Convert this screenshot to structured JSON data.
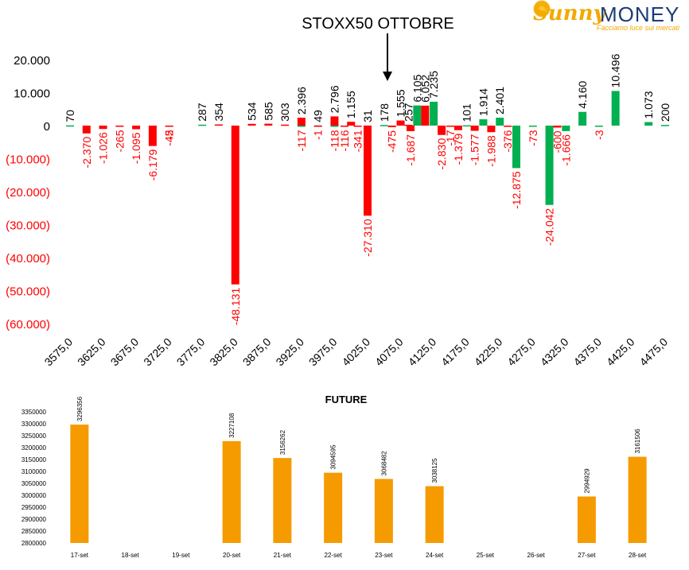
{
  "logo": {
    "brand_left": "Sunny",
    "brand_right": "MONEY",
    "tagline": "Facciamo luce sui mercati"
  },
  "chart_data": [
    {
      "type": "bar",
      "title": "STOXX50 OTTOBRE",
      "annotation": "arrow pointing down at strike 4075",
      "strikes": [
        3575,
        3600,
        3625,
        3650,
        3675,
        3700,
        3725,
        3750,
        3775,
        3800,
        3825,
        3850,
        3875,
        3900,
        3925,
        3950,
        3975,
        4000,
        4025,
        4050,
        4075,
        4100,
        4125,
        4150,
        4175,
        4200,
        4225,
        4250,
        4275,
        4300,
        4325,
        4350,
        4375,
        4400,
        4425,
        4450,
        4475
      ],
      "x_tick_labels": [
        "3575,0",
        "3625,0",
        "3675,0",
        "3725,0",
        "3775,0",
        "3825,0",
        "3875,0",
        "3925,0",
        "3975,0",
        "4025,0",
        "4075,0",
        "4125,0",
        "4175,0",
        "4225,0",
        "4275,0",
        "4325,0",
        "4375,0",
        "4425,0",
        "4475,0"
      ],
      "y_tick_labels": [
        "20.000",
        "10.000",
        "0",
        "(10.000)",
        "(20.000)",
        "(30.000)",
        "(40.000)",
        "(50.000)",
        "(60.000)"
      ],
      "ylim": [
        -60000,
        20000
      ],
      "series": [
        {
          "color": "#00b050",
          "points": [
            {
              "x": 3575,
              "y": 70,
              "label": "70"
            },
            {
              "x": 3725,
              "y": -42,
              "label": "-42"
            },
            {
              "x": 3775,
              "y": 287,
              "label": "287"
            },
            {
              "x": 3925,
              "y": -117,
              "label": "-117"
            },
            {
              "x": 3950,
              "y": 49,
              "label": "49"
            },
            {
              "x": 3975,
              "y": -118,
              "label": "-118"
            },
            {
              "x": 4025,
              "y": 31,
              "label": "31"
            },
            {
              "x": 4050,
              "y": 178,
              "label": "178"
            },
            {
              "x": 4100,
              "y": 6105,
              "label": "6.105"
            },
            {
              "x": 4125,
              "y": 7235,
              "label": "7.235"
            },
            {
              "x": 4175,
              "y": 101,
              "label": "101"
            },
            {
              "x": 4200,
              "y": 1914,
              "label": "1.914"
            },
            {
              "x": 4225,
              "y": 2401,
              "label": "2.401"
            },
            {
              "x": 4250,
              "y": -12875,
              "label": "-12.875"
            },
            {
              "x": 4275,
              "y": -73,
              "label": "-73"
            },
            {
              "x": 4300,
              "y": -24042,
              "label": "-24.042"
            },
            {
              "x": 4325,
              "y": -1666,
              "label": "-1.666"
            },
            {
              "x": 4350,
              "y": 4160,
              "label": "4.160"
            },
            {
              "x": 4375,
              "y": -3,
              "label": "-3"
            },
            {
              "x": 4400,
              "y": 10496,
              "label": "10.496"
            },
            {
              "x": 4450,
              "y": 1073,
              "label": "1.073"
            },
            {
              "x": 4475,
              "y": 200,
              "label": "200"
            }
          ]
        },
        {
          "color": "#ff0000",
          "points": [
            {
              "x": 3600,
              "y": -2370,
              "label": "-2.370"
            },
            {
              "x": 3625,
              "y": -1026,
              "label": "-1.026"
            },
            {
              "x": 3650,
              "y": -265,
              "label": "-265"
            },
            {
              "x": 3675,
              "y": -1095,
              "label": "-1.095"
            },
            {
              "x": 3700,
              "y": -6179,
              "label": "-6.179"
            },
            {
              "x": 3725,
              "y": -5,
              "label": "-5"
            },
            {
              "x": 3800,
              "y": 354,
              "label": "354"
            },
            {
              "x": 3825,
              "y": -48131,
              "label": "-48.131"
            },
            {
              "x": 3850,
              "y": 534,
              "label": "534"
            },
            {
              "x": 3875,
              "y": 585,
              "label": "585"
            },
            {
              "x": 3900,
              "y": 303,
              "label": "303"
            },
            {
              "x": 3925,
              "y": 2396,
              "label": "2.396"
            },
            {
              "x": 3950,
              "y": -1,
              "label": "-1"
            },
            {
              "x": 3975,
              "y": 2796,
              "label": "2.796"
            },
            {
              "x": 3990,
              "y": -116,
              "label": "-116"
            },
            {
              "x": 4000,
              "y": 1155,
              "label": "1.155"
            },
            {
              "x": 4010,
              "y": -341,
              "label": "-341"
            },
            {
              "x": 4025,
              "y": -27310,
              "label": "-27.310"
            },
            {
              "x": 4062,
              "y": -475,
              "label": "-475"
            },
            {
              "x": 4075,
              "y": 1555,
              "label": "1.555"
            },
            {
              "x": 4087,
              "y": 257,
              "label": "257"
            },
            {
              "x": 4090,
              "y": -1687,
              "label": "-1.687"
            },
            {
              "x": 4112,
              "y": 6052,
              "label": "6.052"
            },
            {
              "x": 4137,
              "y": -2830,
              "label": "-2.830"
            },
            {
              "x": 4150,
              "y": -17,
              "label": "-17"
            },
            {
              "x": 4162,
              "y": -1379,
              "label": "-1.379"
            },
            {
              "x": 4187,
              "y": -1577,
              "label": "-1.577"
            },
            {
              "x": 4212,
              "y": -1988,
              "label": "-1.988"
            },
            {
              "x": 4237,
              "y": -376,
              "label": "-376"
            },
            {
              "x": 4312,
              "y": -600,
              "label": "-600"
            }
          ]
        }
      ]
    },
    {
      "type": "bar",
      "title": "FUTURE",
      "categories": [
        "17-set",
        "18-set",
        "19-set",
        "20-set",
        "21-set",
        "22-set",
        "23-set",
        "24-set",
        "25-set",
        "26-set",
        "27-set",
        "28-set"
      ],
      "values": [
        3296356,
        null,
        null,
        3227108,
        3156262,
        3094595,
        3068482,
        3038125,
        null,
        null,
        2994929,
        3161506
      ],
      "value_labels": [
        "3296356",
        "",
        "",
        "3227108",
        "3156262",
        "3094595",
        "3068482",
        "3038125",
        "",
        "",
        "2994929",
        "3161506"
      ],
      "ylim": [
        2800000,
        3350000
      ],
      "y_tick_labels": [
        "3350000",
        "3300000",
        "3250000",
        "3200000",
        "3150000",
        "3100000",
        "3050000",
        "3000000",
        "2950000",
        "2900000",
        "2850000",
        "2800000"
      ],
      "color": "#f59b00"
    }
  ]
}
